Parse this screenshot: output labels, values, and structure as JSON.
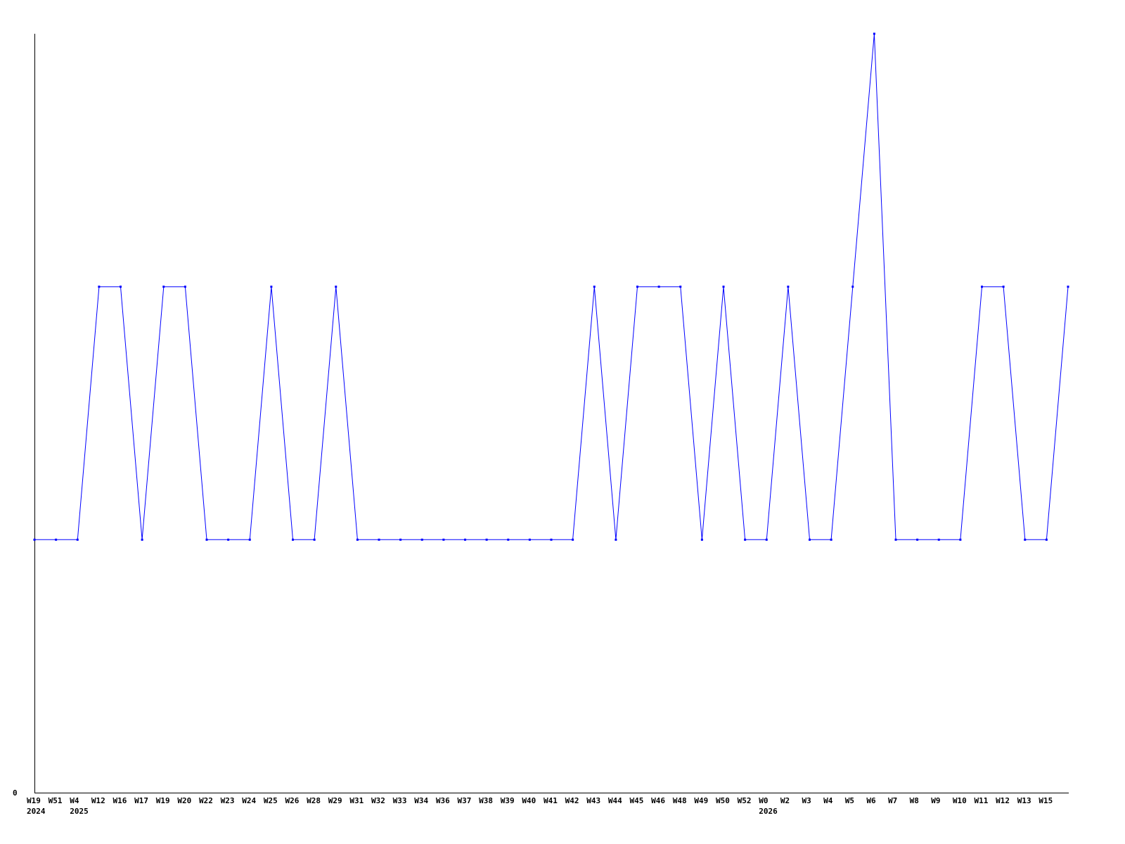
{
  "chart_data": {
    "type": "line",
    "title": "",
    "xlabel": "",
    "ylabel": "",
    "ylim": [
      0,
      3
    ],
    "y_tick_labels": [
      "0"
    ],
    "grid": false,
    "line_color": "#0000ff",
    "categories": [
      "W19",
      "W51",
      "W4",
      "W12",
      "W16",
      "W17",
      "W19",
      "W20",
      "W22",
      "W23",
      "W24",
      "W25",
      "W26",
      "W28",
      "W29",
      "W31",
      "W32",
      "W33",
      "W34",
      "W36",
      "W37",
      "W38",
      "W39",
      "W40",
      "W41",
      "W42",
      "W43",
      "W44",
      "W45",
      "W46",
      "W48",
      "W49",
      "W50",
      "W52",
      "W0",
      "W2",
      "W3",
      "W4",
      "W5",
      "W6",
      "W7",
      "W8",
      "W9",
      "W10",
      "W11",
      "W12",
      "W13",
      "W15",
      ""
    ],
    "year_labels": [
      {
        "index": 0,
        "label": "2024"
      },
      {
        "index": 2,
        "label": "2025"
      },
      {
        "index": 34,
        "label": "2026"
      }
    ],
    "values": [
      1,
      1,
      1,
      2,
      2,
      1,
      2,
      2,
      1,
      1,
      1,
      2,
      1,
      1,
      2,
      1,
      1,
      1,
      1,
      1,
      1,
      1,
      1,
      1,
      1,
      1,
      2,
      1,
      2,
      2,
      2,
      1,
      2,
      1,
      1,
      2,
      1,
      1,
      2,
      3,
      1,
      1,
      1,
      1,
      2,
      2,
      1,
      1,
      2
    ]
  }
}
